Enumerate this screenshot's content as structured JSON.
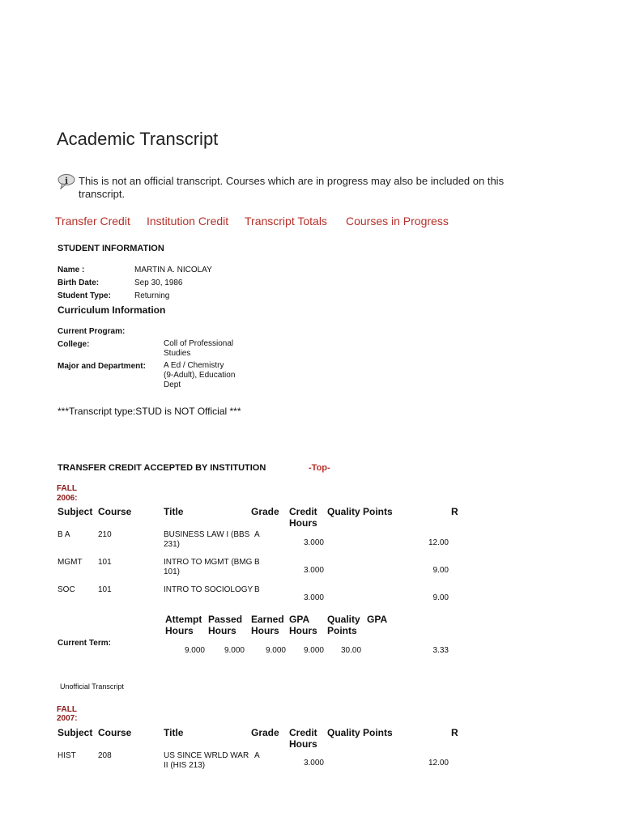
{
  "title": "Academic Transcript",
  "notice": {
    "icon": "info-icon",
    "line1": "This is not an official transcript. Courses which are in progress may also be included on this",
    "line2": "transcript."
  },
  "nav": [
    "Transfer Credit",
    "Institution Credit",
    "Transcript Totals",
    "Courses in Progress"
  ],
  "student": {
    "heading": "STUDENT INFORMATION",
    "name_label": "Name :",
    "name": "MARTIN A. NICOLAY",
    "birth_label": "Birth Date:",
    "birth": "Sep 30, 1986",
    "type_label": "Student Type:",
    "type": "Returning"
  },
  "curriculum": {
    "heading": "Curriculum Information",
    "program_label": "Current Program:",
    "college_label": "College:",
    "college": [
      "Coll of Professional",
      "Studies"
    ],
    "major_label": "Major and Department:",
    "major": [
      "A Ed / Chemistry",
      "(9-Adult), Education",
      "Dept"
    ]
  },
  "transcript_type": "***Transcript type:STUD is NOT Official ***",
  "transfer": {
    "heading": "TRANSFER CREDIT ACCEPTED BY INSTITUTION",
    "top_link": "-Top-"
  },
  "headers": {
    "subject": "Subject",
    "course": "Course",
    "title": "Title",
    "grade": "Grade",
    "credit": "Credit",
    "hours": "Hours",
    "qp": "Quality Points",
    "r": "R"
  },
  "terms": [
    {
      "label": [
        "FALL",
        "2006:"
      ],
      "rows": [
        {
          "subject": "B A",
          "course": "210",
          "title": [
            "BUSINESS LAW I (BBS",
            "231)"
          ],
          "grade": "A",
          "credit": "3.000",
          "qp": "12.00"
        },
        {
          "subject": "MGMT",
          "course": "101",
          "title": [
            "INTRO TO MGMT (BMG",
            "101)"
          ],
          "grade": "B",
          "credit": "3.000",
          "qp": "9.00"
        },
        {
          "subject": "SOC",
          "course": "101",
          "title": [
            "INTRO TO SOCIOLOGY",
            ""
          ],
          "grade": "B",
          "credit": "3.000",
          "qp": "9.00"
        }
      ],
      "summary": {
        "headers": [
          [
            "Attempt",
            "Hours"
          ],
          [
            "Passed",
            "Hours"
          ],
          [
            "Earned",
            "Hours"
          ],
          [
            "GPA",
            "Hours"
          ],
          [
            "Quality",
            "Points"
          ],
          [
            "GPA",
            ""
          ]
        ],
        "label": "Current Term:",
        "values": [
          "9.000",
          "9.000",
          "9.000",
          "9.000",
          "30.00",
          "3.33"
        ]
      }
    },
    {
      "label": [
        "FALL",
        "2007:"
      ],
      "rows": [
        {
          "subject": "HIST",
          "course": "208",
          "title": [
            "US SINCE WRLD WAR",
            "II (HIS 213)"
          ],
          "grade": "A",
          "credit": "3.000",
          "qp": "12.00"
        }
      ]
    }
  ],
  "footer_note": "Unofficial Transcript",
  "colors": {
    "link": "#b5302a",
    "term": "#8b1a1a"
  }
}
